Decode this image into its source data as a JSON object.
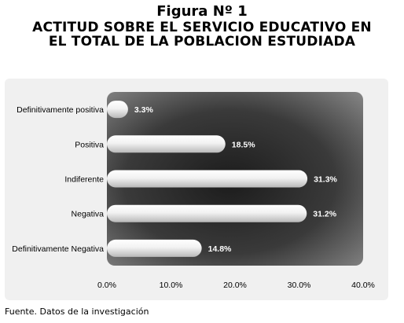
{
  "figure_label": "Figura Nº 1",
  "title_lines": [
    "ACTITUD SOBRE EL SERVICIO EDUCATIVO EN",
    "EL TOTAL DE LA POBLACION ESTUDIADA"
  ],
  "source": "Fuente. Datos de la investigación",
  "chart_data": {
    "type": "bar",
    "orientation": "horizontal",
    "title": "ACTITUD SOBRE EL SERVICIO EDUCATIVO EN EL TOTAL DE LA POBLACION ESTUDIADA",
    "categories": [
      "Definitivamente positiva",
      "Positiva",
      "Indiferente",
      "Negativa",
      "Definitivamente Negativa"
    ],
    "values": [
      3.3,
      18.5,
      31.3,
      31.2,
      14.8
    ],
    "value_labels": [
      "3.3%",
      "18.5%",
      "31.3%",
      "31.2%",
      "14.8%"
    ],
    "xlim": [
      0,
      40
    ],
    "xticks": [
      0,
      10,
      20,
      30,
      40
    ],
    "xtick_labels": [
      "0.0%",
      "10.0%",
      "20.0%",
      "30.0%",
      "40.0%"
    ],
    "grid": false,
    "legend": "none",
    "colors": {
      "plot_background_center": "#1c1c1c",
      "plot_background_edge": "#8a8a8a",
      "bar": "#f2f2f2",
      "label_text": "#ffffff",
      "panel": "#f0f0f0"
    }
  }
}
